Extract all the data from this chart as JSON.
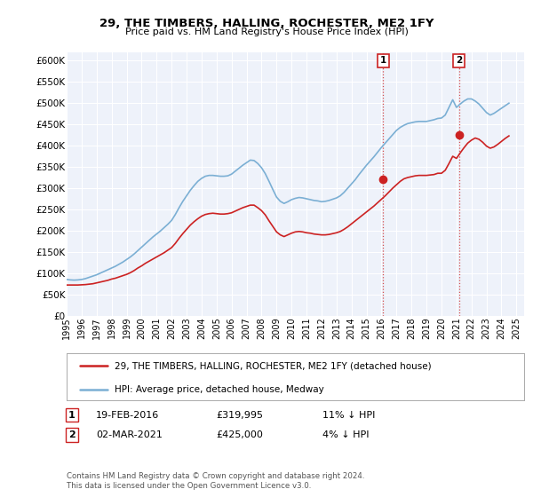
{
  "title": "29, THE TIMBERS, HALLING, ROCHESTER, ME2 1FY",
  "subtitle": "Price paid vs. HM Land Registry's House Price Index (HPI)",
  "ylim": [
    0,
    620000
  ],
  "yticks": [
    0,
    50000,
    100000,
    150000,
    200000,
    250000,
    300000,
    350000,
    400000,
    450000,
    500000,
    550000,
    600000
  ],
  "xlim_start": 1995.0,
  "xlim_end": 2025.5,
  "background_color": "#ffffff",
  "plot_bg_color": "#eef2fa",
  "grid_color": "#ffffff",
  "hpi_color": "#7bafd4",
  "price_color": "#cc2222",
  "sale1_x": 2016.12,
  "sale1_y": 319995,
  "sale2_x": 2021.17,
  "sale2_y": 425000,
  "legend_label_price": "29, THE TIMBERS, HALLING, ROCHESTER, ME2 1FY (detached house)",
  "legend_label_hpi": "HPI: Average price, detached house, Medway",
  "table_row1": [
    "1",
    "19-FEB-2016",
    "£319,995",
    "11% ↓ HPI"
  ],
  "table_row2": [
    "2",
    "02-MAR-2021",
    "£425,000",
    "4% ↓ HPI"
  ],
  "footer": "Contains HM Land Registry data © Crown copyright and database right 2024.\nThis data is licensed under the Open Government Licence v3.0.",
  "hpi_data_x": [
    1995.0,
    1995.25,
    1995.5,
    1995.75,
    1996.0,
    1996.25,
    1996.5,
    1996.75,
    1997.0,
    1997.25,
    1997.5,
    1997.75,
    1998.0,
    1998.25,
    1998.5,
    1998.75,
    1999.0,
    1999.25,
    1999.5,
    1999.75,
    2000.0,
    2000.25,
    2000.5,
    2000.75,
    2001.0,
    2001.25,
    2001.5,
    2001.75,
    2002.0,
    2002.25,
    2002.5,
    2002.75,
    2003.0,
    2003.25,
    2003.5,
    2003.75,
    2004.0,
    2004.25,
    2004.5,
    2004.75,
    2005.0,
    2005.25,
    2005.5,
    2005.75,
    2006.0,
    2006.25,
    2006.5,
    2006.75,
    2007.0,
    2007.25,
    2007.5,
    2007.75,
    2008.0,
    2008.25,
    2008.5,
    2008.75,
    2009.0,
    2009.25,
    2009.5,
    2009.75,
    2010.0,
    2010.25,
    2010.5,
    2010.75,
    2011.0,
    2011.25,
    2011.5,
    2011.75,
    2012.0,
    2012.25,
    2012.5,
    2012.75,
    2013.0,
    2013.25,
    2013.5,
    2013.75,
    2014.0,
    2014.25,
    2014.5,
    2014.75,
    2015.0,
    2015.25,
    2015.5,
    2015.75,
    2016.0,
    2016.25,
    2016.5,
    2016.75,
    2017.0,
    2017.25,
    2017.5,
    2017.75,
    2018.0,
    2018.25,
    2018.5,
    2018.75,
    2019.0,
    2019.25,
    2019.5,
    2019.75,
    2020.0,
    2020.25,
    2020.5,
    2020.75,
    2021.0,
    2021.25,
    2021.5,
    2021.75,
    2022.0,
    2022.25,
    2022.5,
    2022.75,
    2023.0,
    2023.25,
    2023.5,
    2023.75,
    2024.0,
    2024.25,
    2024.5
  ],
  "hpi_data_y": [
    85000,
    84000,
    83500,
    84000,
    85000,
    87000,
    90000,
    93000,
    96000,
    100000,
    104000,
    108000,
    112000,
    116000,
    121000,
    126000,
    132000,
    138000,
    145000,
    153000,
    161000,
    169000,
    177000,
    185000,
    192000,
    199000,
    207000,
    215000,
    224000,
    238000,
    254000,
    269000,
    282000,
    295000,
    306000,
    316000,
    323000,
    328000,
    330000,
    330000,
    329000,
    328000,
    328000,
    329000,
    333000,
    340000,
    347000,
    354000,
    360000,
    366000,
    365000,
    358000,
    348000,
    334000,
    316000,
    297000,
    279000,
    269000,
    264000,
    268000,
    273000,
    276000,
    278000,
    277000,
    275000,
    273000,
    271000,
    270000,
    268000,
    269000,
    271000,
    274000,
    277000,
    282000,
    290000,
    300000,
    310000,
    320000,
    332000,
    343000,
    354000,
    364000,
    374000,
    385000,
    396000,
    406000,
    416000,
    426000,
    436000,
    443000,
    448000,
    452000,
    454000,
    456000,
    457000,
    457000,
    457000,
    459000,
    461000,
    464000,
    465000,
    472000,
    490000,
    508000,
    490000,
    498000,
    505000,
    510000,
    510000,
    505000,
    498000,
    488000,
    478000,
    472000,
    476000,
    482000,
    488000,
    494000,
    500000
  ],
  "price_data_x": [
    1995.0,
    1995.25,
    1995.5,
    1995.75,
    1996.0,
    1996.25,
    1996.5,
    1996.75,
    1997.0,
    1997.25,
    1997.5,
    1997.75,
    1998.0,
    1998.25,
    1998.5,
    1998.75,
    1999.0,
    1999.25,
    1999.5,
    1999.75,
    2000.0,
    2000.25,
    2000.5,
    2000.75,
    2001.0,
    2001.25,
    2001.5,
    2001.75,
    2002.0,
    2002.25,
    2002.5,
    2002.75,
    2003.0,
    2003.25,
    2003.5,
    2003.75,
    2004.0,
    2004.25,
    2004.5,
    2004.75,
    2005.0,
    2005.25,
    2005.5,
    2005.75,
    2006.0,
    2006.25,
    2006.5,
    2006.75,
    2007.0,
    2007.25,
    2007.5,
    2007.75,
    2008.0,
    2008.25,
    2008.5,
    2008.75,
    2009.0,
    2009.25,
    2009.5,
    2009.75,
    2010.0,
    2010.25,
    2010.5,
    2010.75,
    2011.0,
    2011.25,
    2011.5,
    2011.75,
    2012.0,
    2012.25,
    2012.5,
    2012.75,
    2013.0,
    2013.25,
    2013.5,
    2013.75,
    2014.0,
    2014.25,
    2014.5,
    2014.75,
    2015.0,
    2015.25,
    2015.5,
    2015.75,
    2016.0,
    2016.25,
    2016.5,
    2016.75,
    2017.0,
    2017.25,
    2017.5,
    2017.75,
    2018.0,
    2018.25,
    2018.5,
    2018.75,
    2019.0,
    2019.25,
    2019.5,
    2019.75,
    2020.0,
    2020.25,
    2020.5,
    2020.75,
    2021.0,
    2021.25,
    2021.5,
    2021.75,
    2022.0,
    2022.25,
    2022.5,
    2022.75,
    2023.0,
    2023.25,
    2023.5,
    2023.75,
    2024.0,
    2024.25,
    2024.5
  ],
  "price_data_y": [
    72000,
    72000,
    72000,
    72000,
    72500,
    73000,
    74000,
    75000,
    77000,
    79000,
    81000,
    83000,
    86000,
    88000,
    91000,
    94000,
    97000,
    101000,
    106000,
    112000,
    117000,
    123000,
    128000,
    133000,
    138000,
    143000,
    148000,
    154000,
    160000,
    170000,
    182000,
    193000,
    203000,
    213000,
    221000,
    228000,
    234000,
    238000,
    240000,
    241000,
    240000,
    239000,
    239000,
    240000,
    242000,
    246000,
    250000,
    254000,
    257000,
    260000,
    260000,
    254000,
    247000,
    237000,
    223000,
    210000,
    197000,
    190000,
    186000,
    190000,
    194000,
    197000,
    198000,
    197000,
    195000,
    194000,
    192000,
    191000,
    190000,
    190000,
    191000,
    193000,
    195000,
    198000,
    203000,
    209000,
    216000,
    223000,
    230000,
    237000,
    244000,
    251000,
    258000,
    266000,
    274000,
    282000,
    291000,
    300000,
    308000,
    316000,
    322000,
    325000,
    327000,
    329000,
    330000,
    330000,
    330000,
    331000,
    332000,
    335000,
    335000,
    342000,
    358000,
    375000,
    370000,
    383000,
    395000,
    406000,
    413000,
    418000,
    415000,
    408000,
    399000,
    394000,
    397000,
    403000,
    410000,
    417000,
    423000
  ]
}
